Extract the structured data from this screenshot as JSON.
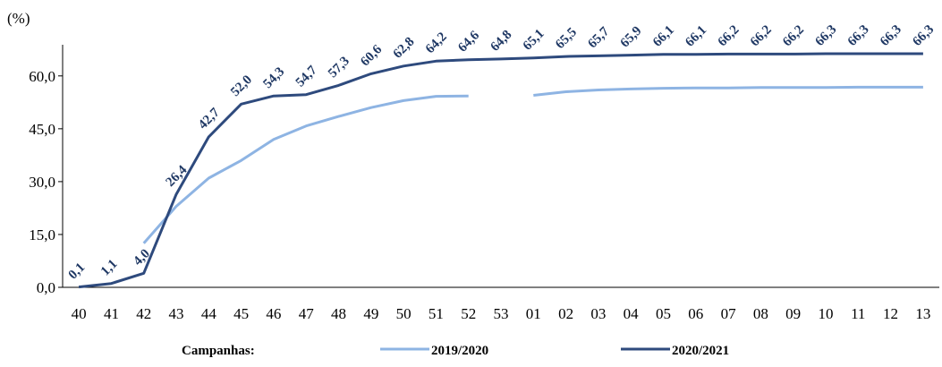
{
  "chart_data": {
    "type": "line",
    "ylabel": "(%)",
    "ylim": [
      0,
      66.3
    ],
    "yticks": [
      "0,0",
      "15,0",
      "30,0",
      "45,0",
      "60,0"
    ],
    "ytick_values": [
      0,
      15,
      30,
      45,
      60
    ],
    "categories": [
      "40",
      "41",
      "42",
      "43",
      "44",
      "45",
      "46",
      "47",
      "48",
      "49",
      "50",
      "51",
      "52",
      "53",
      "01",
      "02",
      "03",
      "04",
      "05",
      "06",
      "07",
      "08",
      "09",
      "10",
      "11",
      "12",
      "13"
    ],
    "legend_title": "Campanhas:",
    "legend_position": "bottom",
    "grid": false,
    "series": [
      {
        "name": "2019/2020",
        "color": "#8eb4e3",
        "values": [
          null,
          null,
          12.5,
          23.0,
          31.0,
          36.0,
          42.0,
          45.8,
          48.5,
          51.0,
          53.0,
          54.2,
          54.3,
          null,
          54.5,
          55.5,
          56.0,
          56.3,
          56.5,
          56.6,
          56.6,
          56.7,
          56.7,
          56.7,
          56.8,
          56.8,
          56.8
        ],
        "labels": []
      },
      {
        "name": "2020/2021",
        "color": "#2e4a7d",
        "values": [
          0.1,
          1.1,
          4.0,
          26.4,
          42.7,
          52.0,
          54.3,
          54.7,
          57.3,
          60.6,
          62.8,
          64.2,
          64.6,
          64.8,
          65.1,
          65.5,
          65.7,
          65.9,
          66.1,
          66.1,
          66.2,
          66.2,
          66.2,
          66.3,
          66.3,
          66.3,
          66.3
        ],
        "labels": [
          "0,1",
          "1,1",
          "4,0",
          "26,4",
          "42,7",
          "52,0",
          "54,3",
          "54,7",
          "57,3",
          "60,6",
          "62,8",
          "64,2",
          "64,6",
          "64,8",
          "65,1",
          "65,5",
          "65,7",
          "65,9",
          "66,1",
          "66,1",
          "66,2",
          "66,2",
          "66,2",
          "66,3",
          "66,3",
          "66,3",
          "66,3"
        ]
      }
    ]
  }
}
